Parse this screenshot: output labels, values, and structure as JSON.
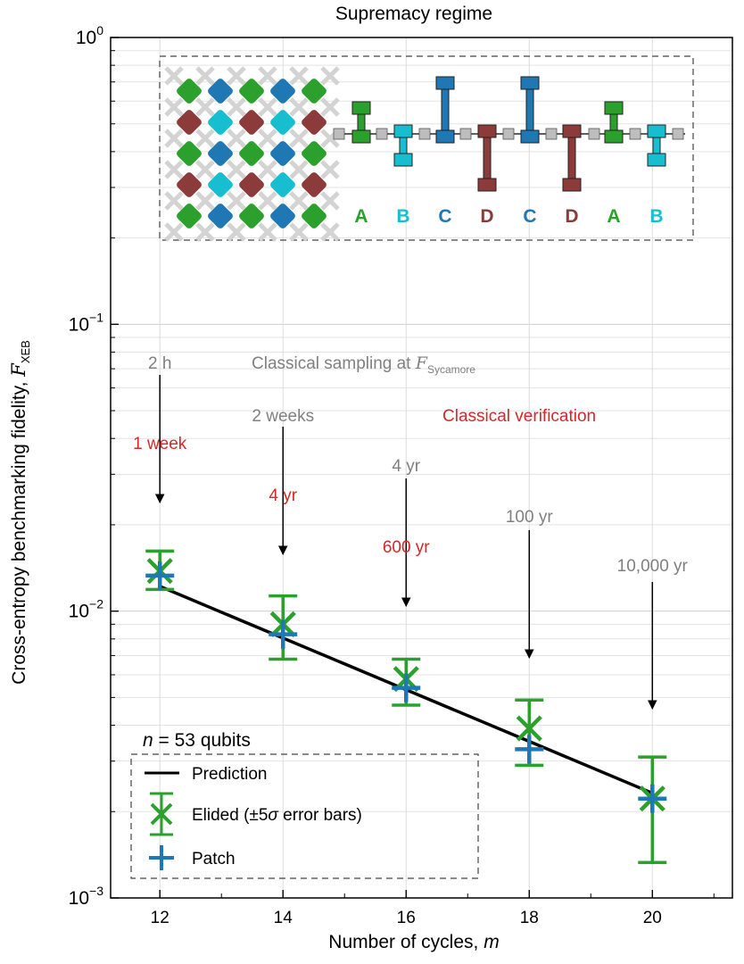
{
  "chart_data": {
    "type": "scatter",
    "title": "Supremacy regime",
    "xlabel_main": "Number of cycles, ",
    "xlabel_var": "m",
    "ylabel_main": "Cross-entropy benchmarking fidelity, ",
    "ylabel_symbol": "F",
    "ylabel_sub": "XEB",
    "yscale": "log",
    "xlim": [
      11.2,
      21.3
    ],
    "ylim": [
      0.001,
      1.0
    ],
    "x_ticks": [
      12,
      14,
      16,
      18,
      20
    ],
    "x_tick_labels": [
      "12",
      "14",
      "16",
      "18",
      "20"
    ],
    "y_ticks": [
      {
        "value": 1.0,
        "base": "10",
        "exp": "0"
      },
      {
        "value": 0.1,
        "base": "10",
        "exp": "−1"
      },
      {
        "value": 0.01,
        "base": "10",
        "exp": "−2"
      },
      {
        "value": 0.001,
        "base": "10",
        "exp": "−3"
      }
    ],
    "grid": true,
    "series": [
      {
        "name": "Prediction",
        "kind": "line",
        "color": "#000000",
        "x": [
          12,
          20
        ],
        "y": [
          0.0122,
          0.00232
        ]
      },
      {
        "name": "Elided (±5σ error bars)",
        "kind": "x-marker-errorbar",
        "color": "#2ca02c",
        "x": [
          12,
          14,
          16,
          18,
          20
        ],
        "y": [
          0.0138,
          0.009,
          0.0058,
          0.0039,
          0.00222
        ],
        "err_low": [
          0.0119,
          0.0068,
          0.0047,
          0.0029,
          0.00133
        ],
        "err_high": [
          0.0162,
          0.0113,
          0.0068,
          0.0049,
          0.0031
        ]
      },
      {
        "name": "Patch",
        "kind": "plus-marker",
        "color": "#1f77b4",
        "x": [
          12,
          14,
          16,
          18,
          20
        ],
        "y": [
          0.0133,
          0.0083,
          0.0054,
          0.0033,
          0.00222
        ]
      }
    ],
    "legend": {
      "placement": "lower-left",
      "header_var": "n",
      "header_rest": " = 53 qubits",
      "items": [
        "Prediction",
        "Elided (±5σ error bars)",
        "Patch"
      ],
      "elided_prefix": "Elided (±5",
      "elided_sigma": "σ",
      "elided_suffix": " error bars)"
    },
    "annotations": {
      "classical_sampling_label": "Classical sampling at ",
      "classical_sampling_symbol": "F",
      "classical_sampling_sub": "Sycamore",
      "classical_verification_label": "Classical verification",
      "sampling_color": "#808080",
      "verification_color": "#d62728",
      "sampling_times": [
        {
          "x": 12,
          "text": "2 h"
        },
        {
          "x": 14,
          "text": "2 weeks"
        },
        {
          "x": 16,
          "text": "4 yr"
        },
        {
          "x": 18,
          "text": "100 yr"
        },
        {
          "x": 20,
          "text": "10,000 yr"
        }
      ],
      "verification_times": [
        {
          "x": 12,
          "text": "1 week"
        },
        {
          "x": 14,
          "text": "4 yr"
        },
        {
          "x": 16,
          "text": "600 yr"
        }
      ]
    },
    "inset": {
      "letters": [
        "A",
        "B",
        "C",
        "D",
        "C",
        "D",
        "A",
        "B"
      ],
      "letter_colors": {
        "A": "#2ca02c",
        "B": "#17becf",
        "C": "#1f77b4",
        "D": "#8c3b3b"
      },
      "grid_rows": [
        [
          "A",
          "C",
          "A",
          "C",
          "A"
        ],
        [
          "D",
          "B",
          "D",
          "B",
          "D"
        ],
        [
          "A",
          "C",
          "A",
          "C",
          "A"
        ],
        [
          "D",
          "B",
          "D",
          "B",
          "D"
        ],
        [
          "A",
          "C",
          "A",
          "C",
          "A"
        ]
      ]
    }
  }
}
